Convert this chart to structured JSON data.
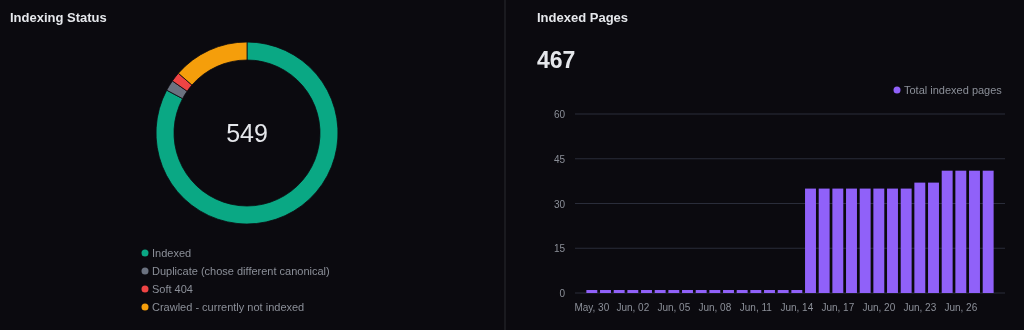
{
  "chart_data": [
    {
      "type": "donut",
      "title": "Indexing Status",
      "annotations": [
        "549"
      ],
      "categories": [
        "Indexed",
        "Duplicate (chose different canonical)",
        "Soft 404",
        "Crawled - currently not indexed"
      ],
      "values": [
        82.8,
        1.9,
        1.7,
        13.6
      ],
      "colors": [
        "#0aa884",
        "#6b7280",
        "#ef4444",
        "#f59e0b"
      ],
      "legend": "bottom"
    },
    {
      "type": "bar",
      "title": "Indexed Pages",
      "subtitle": "467",
      "categories": [
        "May, 30",
        null,
        null,
        "Jun, 02",
        null,
        null,
        "Jun, 05",
        null,
        null,
        "Jun, 08",
        null,
        null,
        "Jun, 11",
        null,
        null,
        "Jun, 14",
        null,
        null,
        "Jun, 17",
        null,
        null,
        "Jun, 20",
        null,
        null,
        "Jun, 23",
        null,
        null,
        "Jun, 26",
        null,
        null
      ],
      "series": [
        {
          "name": "Total indexed pages",
          "color": "#9061f9",
          "values": [
            1,
            1,
            1,
            1,
            1,
            1,
            1,
            1,
            1,
            1,
            1,
            1,
            1,
            1,
            1,
            1,
            35,
            35,
            35,
            35,
            35,
            35,
            35,
            35,
            37,
            37,
            41,
            41,
            41,
            41
          ]
        }
      ],
      "ylim": [
        0,
        60
      ],
      "yticks": [
        0,
        15,
        30,
        45,
        60
      ],
      "grid": "y",
      "legend": "top right"
    }
  ]
}
